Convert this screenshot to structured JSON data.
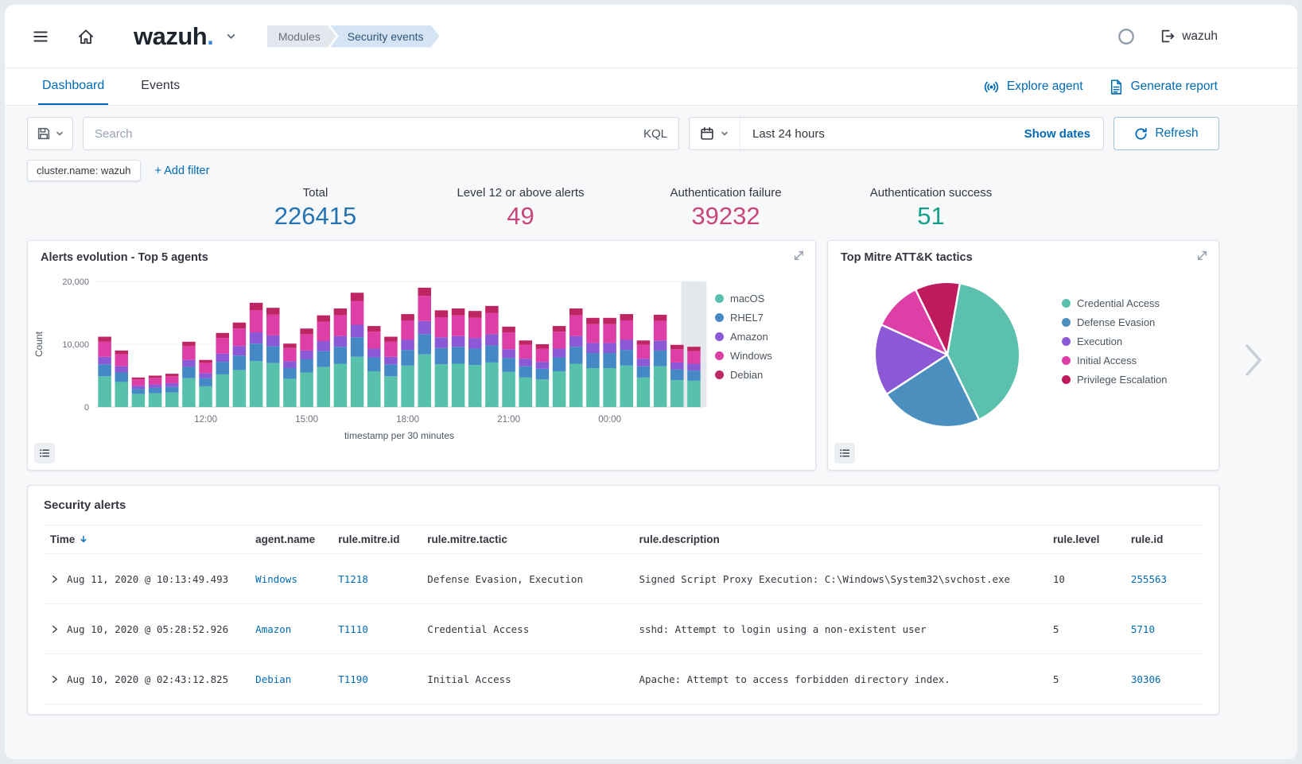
{
  "header": {
    "logo_text": "wazuh",
    "logo_dot": ".",
    "breadcrumbs": [
      {
        "label": "Modules"
      },
      {
        "label": "Security events"
      }
    ],
    "username": "wazuh"
  },
  "tabs": {
    "dashboard": "Dashboard",
    "events": "Events"
  },
  "header_actions": {
    "explore_agent": "Explore agent",
    "generate_report": "Generate report"
  },
  "query_bar": {
    "search_placeholder": "Search",
    "kql_label": "KQL",
    "time_range": "Last 24 hours",
    "show_dates": "Show dates",
    "refresh_label": "Refresh"
  },
  "filter_bar": {
    "pill": "cluster.name: wazuh",
    "add_filter": "+ Add filter"
  },
  "stats": [
    {
      "label": "Total",
      "value": "226415",
      "color": "#2573B2"
    },
    {
      "label": "Level 12 or above alerts",
      "value": "49",
      "color": "#C84778"
    },
    {
      "label": "Authentication failure",
      "value": "39232",
      "color": "#C84778"
    },
    {
      "label": "Authentication success",
      "value": "51",
      "color": "#16A08C"
    }
  ],
  "chart_data": [
    {
      "type": "bar",
      "title": "Alerts evolution - Top 5 agents",
      "stacked": true,
      "xlabel": "timestamp per 30 minutes",
      "ylabel": "Count",
      "ylim": [
        0,
        20000
      ],
      "grid": true,
      "legend_position": "right",
      "yticks": [
        {
          "label": "0",
          "value": 0
        },
        {
          "label": "10,000",
          "value": 10000
        },
        {
          "label": "20,000",
          "value": 20000
        }
      ],
      "x_ticks": [
        {
          "label": "12:00",
          "index": 6
        },
        {
          "label": "15:00",
          "index": 12
        },
        {
          "label": "18:00",
          "index": 18
        },
        {
          "label": "21:00",
          "index": 24
        },
        {
          "label": "00:00",
          "index": 30
        }
      ],
      "highlight_index": 35,
      "series": [
        {
          "name": "macOS",
          "color": "#57C1AB",
          "values": [
            4900,
            4000,
            2100,
            2200,
            2300,
            4600,
            3300,
            5200,
            5900,
            7300,
            7000,
            4500,
            5500,
            6400,
            6900,
            8000,
            5700,
            4900,
            6600,
            8400,
            6800,
            6900,
            6700,
            7100,
            5600,
            4700,
            4400,
            5700,
            6900,
            6200,
            6200,
            6600,
            4700,
            6500,
            4300,
            4200
          ]
        },
        {
          "name": "RHEL7",
          "color": "#4489C5",
          "values": [
            1900,
            1500,
            800,
            850,
            900,
            1800,
            1300,
            2000,
            2300,
            2800,
            2700,
            1700,
            2100,
            2500,
            2700,
            3100,
            2200,
            1900,
            2500,
            3200,
            2600,
            2700,
            2600,
            2700,
            2200,
            1800,
            1700,
            2200,
            2700,
            2400,
            2400,
            2500,
            1800,
            2500,
            1700,
            1600
          ]
        },
        {
          "name": "Amazon",
          "color": "#8C59D6",
          "values": [
            1200,
            1000,
            500,
            550,
            600,
            1100,
            800,
            1300,
            1500,
            1800,
            1700,
            1100,
            1400,
            1600,
            1700,
            2000,
            1400,
            1200,
            1600,
            2100,
            1700,
            1700,
            1700,
            1800,
            1400,
            1200,
            1100,
            1400,
            1700,
            1600,
            1600,
            1600,
            1200,
            1600,
            1100,
            1100
          ]
        },
        {
          "name": "Windows",
          "color": "#DE3FA6",
          "values": [
            2400,
            1900,
            1000,
            1050,
            1100,
            2200,
            1600,
            2500,
            2800,
            3500,
            3300,
            2100,
            2600,
            3100,
            3300,
            3800,
            2700,
            2400,
            3100,
            4000,
            3200,
            3300,
            3200,
            3400,
            2700,
            2200,
            2100,
            2700,
            3300,
            3000,
            3000,
            3100,
            2200,
            3100,
            2100,
            2000
          ]
        },
        {
          "name": "Debian",
          "color": "#BE2663",
          "values": [
            800,
            600,
            300,
            350,
            400,
            700,
            500,
            800,
            950,
            1200,
            1100,
            700,
            900,
            1000,
            1100,
            1300,
            900,
            800,
            1000,
            1300,
            1100,
            1100,
            1100,
            1100,
            900,
            700,
            700,
            900,
            1100,
            1000,
            1000,
            1000,
            700,
            1000,
            700,
            700
          ]
        }
      ]
    },
    {
      "type": "pie",
      "title": "Top Mitre ATT&K tactics",
      "legend_position": "right",
      "slices": [
        {
          "label": "Credential Access",
          "value": 40,
          "color": "#5BC0AE"
        },
        {
          "label": "Defense Evasion",
          "value": 23,
          "color": "#4A8FBE"
        },
        {
          "label": "Execution",
          "value": 16,
          "color": "#8C59D6"
        },
        {
          "label": "Initial Access",
          "value": 11,
          "color": "#DE3FA6"
        },
        {
          "label": "Privilege Escalation",
          "value": 10,
          "color": "#C01A5E"
        }
      ]
    }
  ],
  "alerts_table": {
    "title": "Security alerts",
    "columns": [
      "Time",
      "agent.name",
      "rule.mitre.id",
      "rule.mitre.tactic",
      "rule.description",
      "rule.level",
      "rule.id"
    ],
    "rows": [
      {
        "time": "Aug 11, 2020 @ 10:13:49.493",
        "agent": "Windows",
        "mitre_id": "T1218",
        "tactic": "Defense Evasion, Execution",
        "description": "Signed Script Proxy Execution: C:\\Windows\\System32\\svchost.exe",
        "level": "10",
        "rule_id": "255563"
      },
      {
        "time": "Aug 10, 2020 @ 05:28:52.926",
        "agent": "Amazon",
        "mitre_id": "T1110",
        "tactic": "Credential Access",
        "description": "sshd: Attempt to login using a non-existent user",
        "level": "5",
        "rule_id": "5710"
      },
      {
        "time": "Aug 10, 2020 @ 02:43:12.825",
        "agent": "Debian",
        "mitre_id": "T1190",
        "tactic": "Initial Access",
        "description": "Apache: Attempt to access forbidden directory index.",
        "level": "5",
        "rule_id": "30306"
      }
    ]
  }
}
